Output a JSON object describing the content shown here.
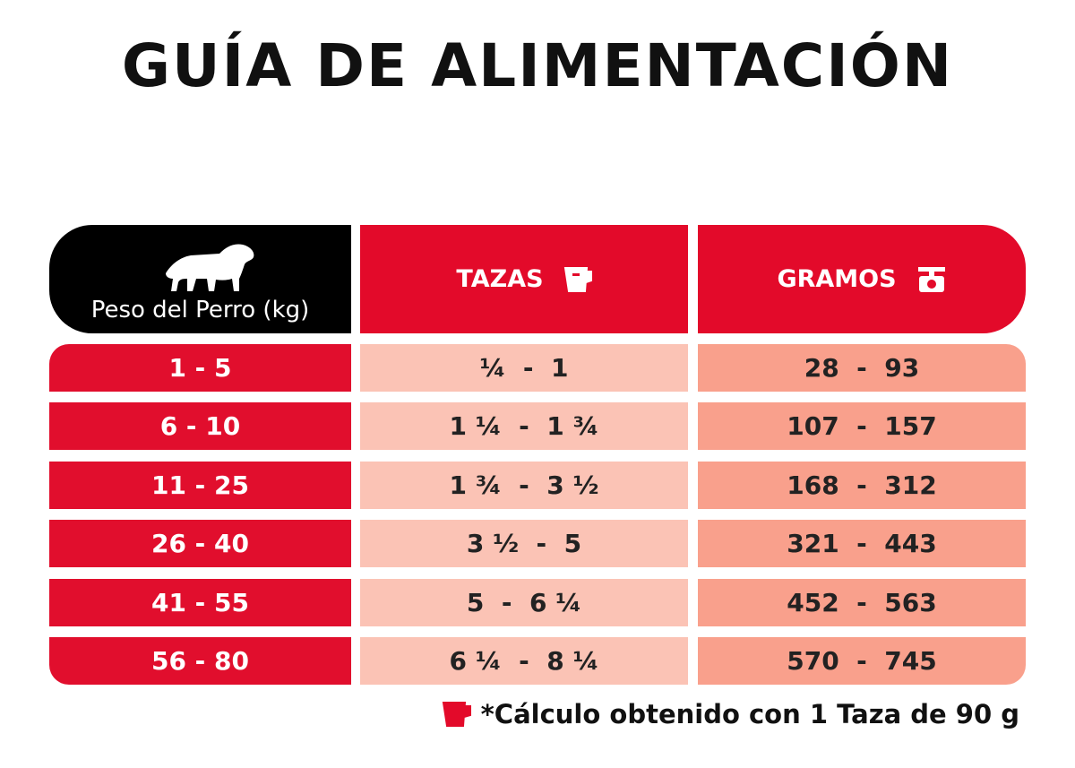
{
  "title": "GUÍA DE ALIMENTACIÓN",
  "table": {
    "header": [
      "Peso del Perro (kg)",
      "TAZAS",
      "GRAMOS"
    ],
    "rows": [
      [
        "1 - 5",
        "¼  -  1",
        "28  -  93"
      ],
      [
        "6 - 10",
        "1 ¼  -  1 ¾",
        "107  -  157"
      ],
      [
        "11 - 25",
        "1 ¾  -  3 ½",
        "168  -  312"
      ],
      [
        "26 - 40",
        "3 ½  -  5",
        "321  -  443"
      ],
      [
        "41 - 55",
        "5  -  6 ¼",
        "452  -  563"
      ],
      [
        "56 - 80",
        "6 ¼  -  8 ¼",
        "570  -  745"
      ]
    ]
  },
  "footnote": "*Cálculo obtenido con 1 Taza de 90 g"
}
